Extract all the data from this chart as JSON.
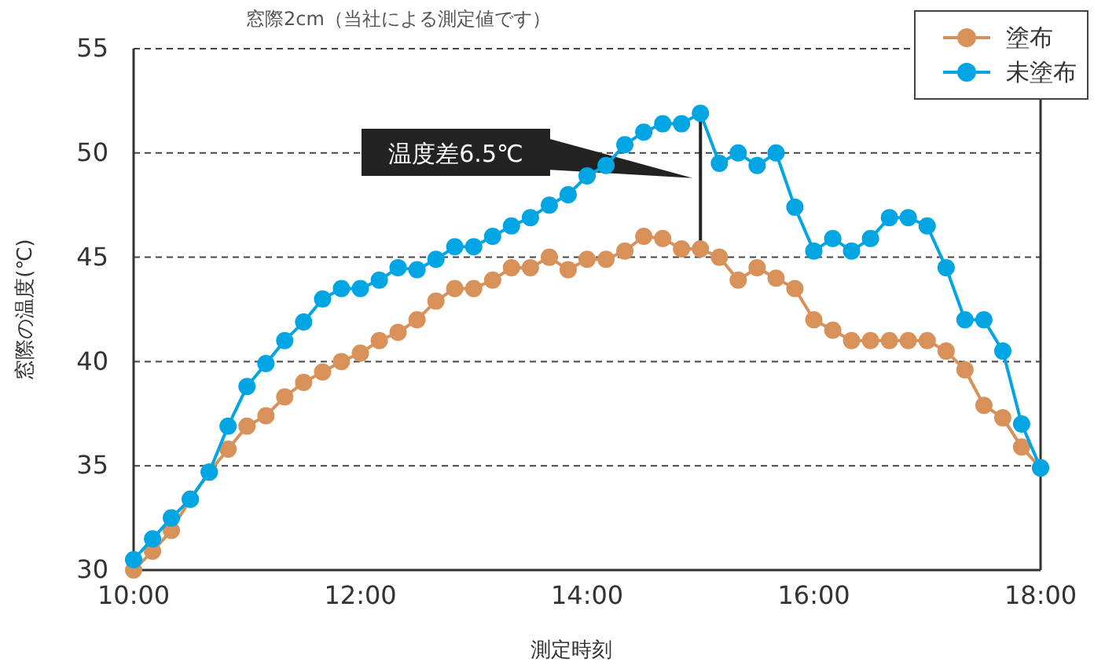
{
  "chart_data": {
    "type": "line",
    "title": "窓際2cm（当社による測定値です）",
    "xlabel": "測定時刻",
    "ylabel": "窓際の温度(℃)",
    "x": [
      10,
      10.167,
      10.333,
      10.5,
      10.667,
      10.833,
      11,
      11.167,
      11.333,
      11.5,
      11.667,
      11.833,
      12,
      12.167,
      12.333,
      12.5,
      12.667,
      12.833,
      13,
      13.167,
      13.333,
      13.5,
      13.667,
      13.833,
      14,
      14.167,
      14.333,
      14.5,
      14.667,
      14.833,
      15,
      15.167,
      15.333,
      15.5,
      15.667,
      15.833,
      16,
      16.167,
      16.333,
      16.5,
      16.667,
      16.833,
      17,
      17.167,
      17.333,
      17.5,
      17.667,
      17.833,
      18
    ],
    "series": [
      {
        "name": "塗布",
        "color": "#d9915a",
        "values": [
          30.0,
          30.9,
          31.9,
          33.4,
          34.7,
          35.8,
          36.9,
          37.4,
          38.3,
          39.0,
          39.5,
          40.0,
          40.4,
          41.0,
          41.4,
          42.0,
          42.9,
          43.5,
          43.5,
          43.9,
          44.5,
          44.5,
          45.0,
          44.4,
          44.9,
          44.9,
          45.3,
          46.0,
          45.9,
          45.4,
          45.4,
          45.0,
          43.9,
          44.5,
          44.0,
          43.5,
          42.0,
          41.5,
          41.0,
          41.0,
          41.0,
          41.0,
          41.0,
          40.5,
          39.6,
          37.9,
          37.3,
          35.9,
          34.9
        ]
      },
      {
        "name": "未塗布",
        "color": "#00a6e4",
        "values": [
          30.5,
          31.5,
          32.5,
          33.4,
          34.7,
          36.9,
          38.8,
          39.9,
          41.0,
          41.9,
          43.0,
          43.5,
          43.5,
          43.9,
          44.5,
          44.4,
          44.9,
          45.5,
          45.5,
          46.0,
          46.5,
          46.9,
          47.5,
          48.0,
          48.9,
          49.4,
          50.4,
          51.0,
          51.4,
          51.4,
          51.9,
          49.5,
          50.0,
          49.4,
          50.0,
          47.4,
          45.3,
          45.9,
          45.3,
          45.9,
          46.9,
          46.9,
          46.5,
          44.5,
          42.0,
          42.0,
          40.5,
          37.0,
          34.9
        ]
      }
    ],
    "xlim": [
      10,
      18
    ],
    "xticks": [
      {
        "value": 10,
        "label": "10:00"
      },
      {
        "value": 12,
        "label": "12:00"
      },
      {
        "value": 14,
        "label": "14:00"
      },
      {
        "value": 16,
        "label": "16:00"
      },
      {
        "value": 18,
        "label": "18:00"
      }
    ],
    "ylim": [
      30,
      55
    ],
    "yticks": [
      30,
      35,
      40,
      45,
      50,
      55
    ],
    "grid": "y",
    "legend": "top right",
    "marker": "circle",
    "line_style": "solid",
    "annotations": [
      "温度差6.5℃"
    ]
  }
}
